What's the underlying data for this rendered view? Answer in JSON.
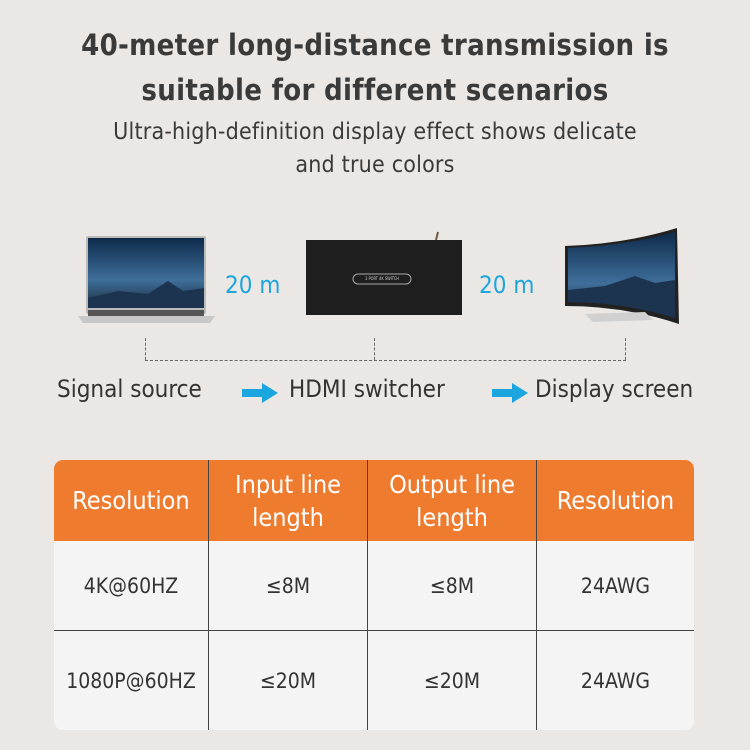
{
  "heading": {
    "line1": "40-meter long-distance transmission is",
    "line2": "suitable for different scenarios"
  },
  "subheading": {
    "line1": "Ultra-high-definition display effect shows delicate",
    "line2": "and true colors"
  },
  "diagram": {
    "distance_left": "20 m",
    "distance_right": "20 m",
    "switch_logo_text": "3 PORT 4K SWITCH",
    "labels": [
      "Signal source",
      "HDMI switcher",
      "Display screen"
    ],
    "arrow_color": "#1ba6df"
  },
  "table": {
    "header_color": "#ee7b2e",
    "headers": [
      [
        "Resolution"
      ],
      [
        "Input line",
        "length"
      ],
      [
        "Output line",
        "length"
      ],
      [
        "Resolution"
      ]
    ],
    "rows": [
      [
        "4K@60HZ",
        "≤8M",
        "≤8M",
        "24AWG"
      ],
      [
        "1080P@60HZ",
        "≤20M",
        "≤20M",
        "24AWG"
      ]
    ]
  }
}
